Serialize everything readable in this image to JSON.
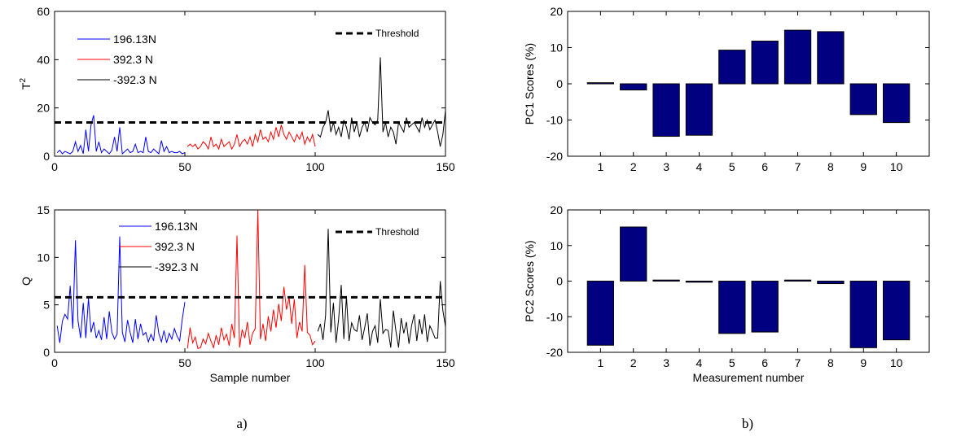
{
  "captions": {
    "a": "a)",
    "b": "b)"
  },
  "chart_data": [
    {
      "id": "t2",
      "type": "line",
      "ylabel": "T",
      "ylabel_sup": "2",
      "xlabel": "",
      "xlim": [
        0,
        150
      ],
      "ylim": [
        0,
        60
      ],
      "xticks": [
        0,
        50,
        100,
        150
      ],
      "yticks": [
        0,
        20,
        40,
        60
      ],
      "grid": false,
      "legend_placement": "top-left",
      "threshold": {
        "name": "Threshold",
        "value": 14,
        "legend_placement": "top-right"
      },
      "series": [
        {
          "name": "196.13N",
          "color": "#0000ff",
          "x_start": 1,
          "values": [
            1.5,
            2.5,
            1,
            2,
            1.5,
            1,
            2,
            6,
            2,
            4.5,
            1,
            11,
            2,
            13,
            17,
            2,
            6,
            1.5,
            3,
            2,
            1,
            2.5,
            8,
            2,
            12,
            1,
            2,
            3,
            1.5,
            2,
            5,
            1.5,
            2,
            1.5,
            8,
            2,
            1.5,
            3,
            2,
            1,
            6.5,
            2,
            4,
            1.5,
            2,
            1.5,
            1.5,
            2,
            1,
            1.5
          ]
        },
        {
          "name": "392.3 N",
          "color": "#ff0000",
          "x_start": 51,
          "values": [
            4,
            5,
            4,
            5,
            3,
            4,
            6,
            5,
            3,
            8,
            4,
            5,
            3,
            7,
            4,
            5,
            6,
            3,
            5,
            9,
            4,
            6,
            7,
            5,
            8,
            4,
            9,
            6,
            11,
            7,
            8,
            6,
            10,
            7,
            12,
            8,
            13,
            9,
            7,
            10,
            8,
            6,
            9,
            7,
            10,
            5,
            8,
            6,
            9,
            4
          ]
        },
        {
          "name": "-392.3 N",
          "color": "#000000",
          "x_start": 101,
          "values": [
            9,
            8,
            12,
            14,
            19,
            10,
            14,
            9,
            12,
            8,
            15,
            12,
            7,
            16,
            10,
            14,
            8,
            12,
            14,
            10,
            16,
            14,
            13,
            15,
            41,
            10,
            14,
            8,
            12,
            10,
            5,
            14,
            12,
            10,
            16,
            12,
            13,
            14,
            12,
            10,
            16,
            12,
            15,
            11,
            13,
            15,
            10,
            4,
            9,
            19
          ]
        }
      ]
    },
    {
      "id": "q",
      "type": "line",
      "ylabel": "Q",
      "xlabel": "Sample number",
      "xlim": [
        0,
        150
      ],
      "ylim": [
        0,
        15
      ],
      "xticks": [
        0,
        50,
        100,
        150
      ],
      "yticks": [
        0,
        5,
        10,
        15
      ],
      "grid": false,
      "legend_placement": "top-left",
      "threshold": {
        "name": "Threshold",
        "value": 5.8,
        "legend_placement": "top-right"
      },
      "series": [
        {
          "name": "196.13N",
          "color": "#0000ff",
          "x_start": 1,
          "values": [
            2.8,
            1,
            3.3,
            4,
            3.5,
            7,
            2.5,
            11.8,
            3.3,
            1.5,
            5.2,
            1.5,
            5.7,
            2.1,
            3.2,
            1.5,
            2.3,
            1.3,
            3.7,
            1.4,
            4.3,
            2.1,
            1.4,
            1.9,
            12.2,
            2.1,
            1.1,
            3.4,
            2.1,
            1,
            3.5,
            1.4,
            3,
            1.8,
            2.1,
            1.1,
            1.9,
            1.2,
            3.9,
            2,
            1.1,
            2.3,
            1,
            2,
            1.4,
            2.5,
            1.7,
            1.2,
            3.5,
            5.3
          ]
        },
        {
          "name": "392.3 N",
          "color": "#ff0000",
          "x_start": 51,
          "values": [
            0.4,
            2.6,
            1,
            1.6,
            0.4,
            0.5,
            1.4,
            0.9,
            2,
            1.2,
            0.5,
            1.8,
            0.8,
            2.6,
            1.3,
            1.9,
            0.7,
            3,
            1.5,
            12.3,
            0.5,
            2.4,
            1.5,
            3.2,
            0.8,
            2,
            2.5,
            15,
            1.4,
            3,
            1.2,
            3.8,
            2.2,
            4.5,
            2.6,
            5.1,
            3.3,
            6.9,
            4.5,
            5.8,
            3,
            5.6,
            1.5,
            3.2,
            2.2,
            9.2,
            2.1,
            1.8,
            0.8,
            1.2
          ]
        },
        {
          "name": "-392.3 N",
          "color": "#000000",
          "x_start": 101,
          "values": [
            2.2,
            3,
            1.3,
            3.9,
            13,
            2.1,
            5.2,
            1,
            3.5,
            7.1,
            1.4,
            5.9,
            1.2,
            3.1,
            2.4,
            2.2,
            3.9,
            1.3,
            2.6,
            4.1,
            0.7,
            2.2,
            2.8,
            1,
            5.6,
            2,
            2.4,
            2.3,
            0.5,
            4.4,
            2.2,
            0.5,
            3.6,
            2,
            3.2,
            0.9,
            2.8,
            4,
            1.2,
            3.5,
            1.9,
            4,
            1.1,
            2.8,
            2.2,
            1.5,
            1.5,
            7.5,
            4.4,
            2.7
          ]
        }
      ]
    },
    {
      "id": "pc1",
      "type": "bar",
      "ylabel": "PC1 Scores (%)",
      "xlabel": "",
      "categories": [
        "1",
        "2",
        "3",
        "4",
        "5",
        "6",
        "7",
        "8",
        "9",
        "10"
      ],
      "values": [
        0.3,
        -1.7,
        -14.5,
        -14.2,
        9.3,
        11.8,
        14.8,
        14.4,
        -8.5,
        -10.7
      ],
      "ylim": [
        -20,
        20
      ],
      "yticks": [
        -20,
        -10,
        0,
        10,
        20
      ],
      "color": "#000080",
      "grid": false
    },
    {
      "id": "pc2",
      "type": "bar",
      "ylabel": "PC2 Scores (%)",
      "xlabel": "Measurement number",
      "categories": [
        "1",
        "2",
        "3",
        "4",
        "5",
        "6",
        "7",
        "8",
        "9",
        "10"
      ],
      "values": [
        -18,
        15.2,
        0.3,
        -0.3,
        -14.7,
        -14.3,
        0.3,
        -0.7,
        -18.7,
        -16.5
      ],
      "ylim": [
        -20,
        20
      ],
      "yticks": [
        -20,
        -10,
        0,
        10,
        20
      ],
      "color": "#000080",
      "grid": false
    }
  ]
}
